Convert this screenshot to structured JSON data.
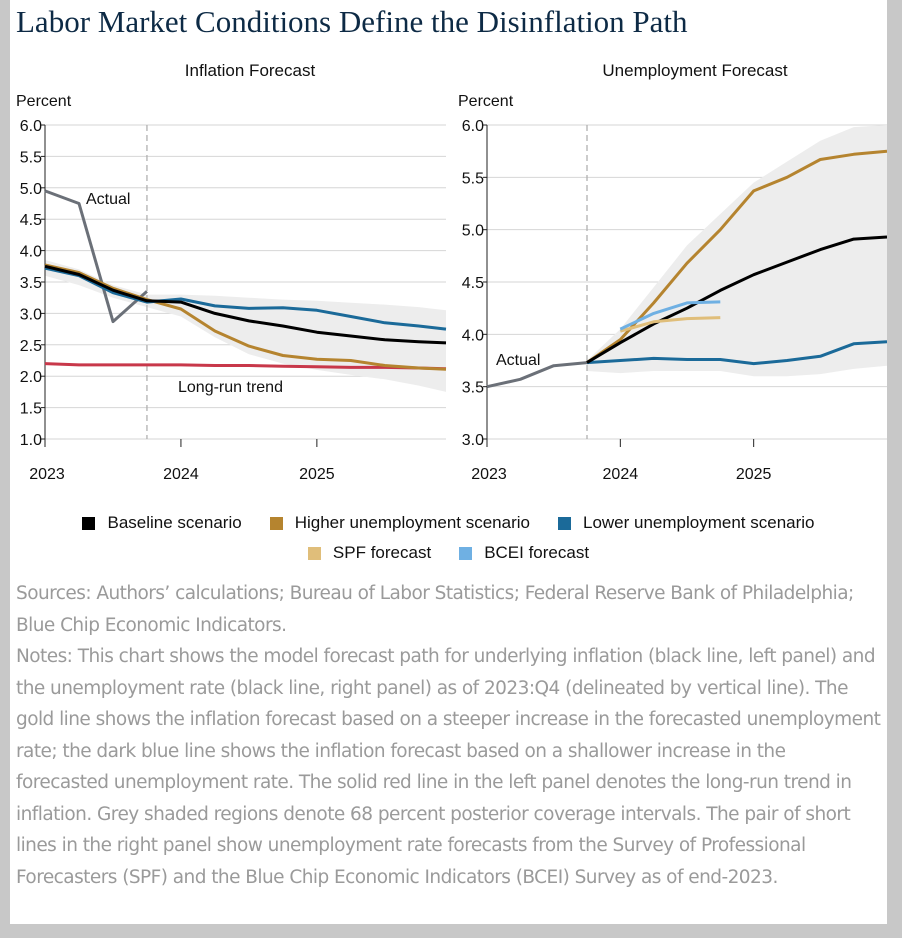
{
  "title": "Labor Market Conditions Define the Disinflation Path",
  "legend": [
    {
      "label": "Baseline scenario",
      "color": "#000000"
    },
    {
      "label": "Higher unemployment scenario",
      "color": "#b5842f"
    },
    {
      "label": "Lower unemployment scenario",
      "color": "#1b6a99"
    },
    {
      "label": "SPF forecast",
      "color": "#e0be7a"
    },
    {
      "label": "BCEI forecast",
      "color": "#6fb0e3"
    }
  ],
  "sources": "Sources: Authors’ calculations; Bureau of Labor Statistics; Federal Reserve Bank of Philadelphia; Blue Chip Economic Indicators.",
  "notes": "Notes: This chart shows the model forecast path for underlying inflation (black line, left panel) and the unemployment rate (black line, right panel) as of 2023:Q4 (delineated by vertical line). The gold line shows the inflation forecast based on a steeper increase in the forecasted unemployment rate; the dark blue line shows the inflation forecast based on a shallower increase in the forecasted unemployment rate. The solid red line in the left panel denotes the long-run trend in inflation. Grey shaded regions denote 68 percent posterior coverage intervals. The pair of short lines in the right panel show unemployment rate forecasts from the Survey of Professional Forecasters (SPF) and the Blue Chip Economic Indicators (BCEI) Survey as of end-2023.",
  "chart_data": [
    {
      "type": "line",
      "title": "Inflation Forecast",
      "ylabel": "Percent",
      "ylim": [
        1.0,
        6.0
      ],
      "yticks": [
        "1.0",
        "1.5",
        "2.0",
        "2.5",
        "3.0",
        "3.5",
        "4.0",
        "4.5",
        "5.0",
        "5.5",
        "6.0"
      ],
      "xlim": [
        2023.0,
        2025.95
      ],
      "xticks": [
        "2023",
        "2024",
        "2025"
      ],
      "forecast_start": 2023.75,
      "annotations": [
        "Actual",
        "Long-run trend"
      ],
      "band": {
        "x": [
          2023.0,
          2023.25,
          2023.5,
          2023.75,
          2024.0,
          2024.25,
          2024.5,
          2024.75,
          2025.0,
          2025.25,
          2025.5,
          2025.75,
          2025.95
        ],
        "upper": [
          3.85,
          3.7,
          3.45,
          3.3,
          3.3,
          3.28,
          3.25,
          3.22,
          3.2,
          3.17,
          3.14,
          3.1,
          3.05
        ],
        "lower": [
          3.6,
          3.45,
          3.25,
          3.1,
          2.95,
          2.62,
          2.35,
          2.2,
          2.1,
          2.02,
          1.95,
          1.85,
          1.75
        ]
      },
      "series": [
        {
          "name": "Long-run trend",
          "color": "#c8384a",
          "x": [
            2023.0,
            2023.25,
            2023.5,
            2023.75,
            2024.0,
            2024.25,
            2024.5,
            2024.75,
            2025.0,
            2025.25,
            2025.5,
            2025.75,
            2025.95
          ],
          "y": [
            2.2,
            2.18,
            2.18,
            2.18,
            2.18,
            2.17,
            2.17,
            2.16,
            2.15,
            2.14,
            2.14,
            2.13,
            2.12
          ]
        },
        {
          "name": "Actual",
          "color": "#6b7078",
          "x": [
            2023.0,
            2023.25,
            2023.5,
            2023.75
          ],
          "y": [
            4.95,
            4.75,
            2.87,
            3.35
          ]
        },
        {
          "name": "Higher unemployment scenario",
          "color": "#b5842f",
          "x": [
            2023.0,
            2023.25,
            2023.5,
            2023.75,
            2024.0,
            2024.25,
            2024.5,
            2024.75,
            2025.0,
            2025.25,
            2025.5,
            2025.75,
            2025.95
          ],
          "y": [
            3.77,
            3.65,
            3.4,
            3.22,
            3.07,
            2.72,
            2.48,
            2.33,
            2.27,
            2.25,
            2.17,
            2.13,
            2.11
          ]
        },
        {
          "name": "Lower unemployment scenario",
          "color": "#1b6a99",
          "x": [
            2023.0,
            2023.25,
            2023.5,
            2023.75,
            2024.0,
            2024.25,
            2024.5,
            2024.75,
            2025.0,
            2025.25,
            2025.5,
            2025.75,
            2025.95
          ],
          "y": [
            3.72,
            3.6,
            3.33,
            3.18,
            3.23,
            3.12,
            3.08,
            3.09,
            3.05,
            2.95,
            2.85,
            2.8,
            2.75
          ]
        },
        {
          "name": "Baseline scenario",
          "color": "#000000",
          "x": [
            2023.0,
            2023.25,
            2023.5,
            2023.75,
            2024.0,
            2024.25,
            2024.5,
            2024.75,
            2025.0,
            2025.25,
            2025.5,
            2025.75,
            2025.95
          ],
          "y": [
            3.75,
            3.62,
            3.37,
            3.2,
            3.18,
            3.0,
            2.88,
            2.8,
            2.7,
            2.64,
            2.58,
            2.55,
            2.53
          ]
        }
      ]
    },
    {
      "type": "line",
      "title": "Unemployment Forecast",
      "ylabel": "Percent",
      "ylim": [
        3.0,
        6.0
      ],
      "yticks": [
        "3.0",
        "3.5",
        "4.0",
        "4.5",
        "5.0",
        "5.5",
        "6.0"
      ],
      "xlim": [
        2023.0,
        2026.0
      ],
      "xticks": [
        "2023",
        "2024",
        "2025"
      ],
      "forecast_start": 2023.75,
      "annotations": [
        "Actual"
      ],
      "band": {
        "x": [
          2023.75,
          2024.0,
          2024.25,
          2024.5,
          2024.75,
          2025.0,
          2025.25,
          2025.5,
          2025.75,
          2026.0
        ],
        "upper": [
          3.75,
          4.05,
          4.45,
          4.85,
          5.15,
          5.45,
          5.65,
          5.85,
          5.98,
          6.0
        ],
        "lower": [
          3.65,
          3.63,
          3.65,
          3.65,
          3.65,
          3.6,
          3.6,
          3.62,
          3.67,
          3.7
        ]
      },
      "series": [
        {
          "name": "Actual",
          "color": "#6b7078",
          "x": [
            2023.0,
            2023.25,
            2023.5,
            2023.75
          ],
          "y": [
            3.5,
            3.57,
            3.7,
            3.73
          ]
        },
        {
          "name": "Higher unemployment scenario",
          "color": "#b5842f",
          "x": [
            2023.75,
            2024.0,
            2024.25,
            2024.5,
            2024.75,
            2025.0,
            2025.25,
            2025.5,
            2025.75,
            2026.0
          ],
          "y": [
            3.73,
            3.95,
            4.3,
            4.68,
            5.0,
            5.37,
            5.5,
            5.67,
            5.72,
            5.75
          ]
        },
        {
          "name": "Lower unemployment scenario",
          "color": "#1b6a99",
          "x": [
            2023.75,
            2024.0,
            2024.25,
            2024.5,
            2024.75,
            2025.0,
            2025.25,
            2025.5,
            2025.75,
            2026.0
          ],
          "y": [
            3.73,
            3.75,
            3.77,
            3.76,
            3.76,
            3.72,
            3.75,
            3.79,
            3.91,
            3.93
          ]
        },
        {
          "name": "Baseline scenario",
          "color": "#000000",
          "x": [
            2023.75,
            2024.0,
            2024.25,
            2024.5,
            2024.75,
            2025.0,
            2025.25,
            2025.5,
            2025.75,
            2026.0
          ],
          "y": [
            3.73,
            3.92,
            4.1,
            4.25,
            4.42,
            4.57,
            4.69,
            4.81,
            4.91,
            4.93
          ]
        },
        {
          "name": "SPF forecast",
          "color": "#e0be7a",
          "x": [
            2024.0,
            2024.25,
            2024.5,
            2024.75
          ],
          "y": [
            4.03,
            4.12,
            4.15,
            4.16
          ]
        },
        {
          "name": "BCEI forecast",
          "color": "#6fb0e3",
          "x": [
            2024.0,
            2024.25,
            2024.5,
            2024.75
          ],
          "y": [
            4.05,
            4.2,
            4.3,
            4.31
          ]
        }
      ]
    }
  ]
}
